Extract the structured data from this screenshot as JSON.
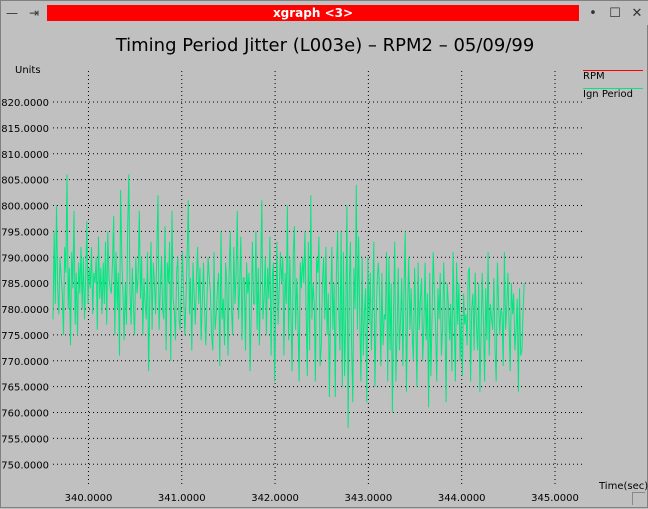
{
  "window": {
    "title": "xgraph <3>",
    "minimize_glyph": "—",
    "pin_glyph": "⇥",
    "shade_glyph": "•",
    "maximize_glyph": "☐",
    "close_glyph": "✕"
  },
  "chart_data": {
    "type": "line",
    "title": "Timing Period Jitter (L003e) – RPM2 – 05/09/99",
    "ylabel": "Units",
    "xlabel": "Time(sec)",
    "xlim": [
      339.62,
      345.3
    ],
    "ylim": [
      746.0,
      826.0
    ],
    "xticks": [
      340.0,
      341.0,
      342.0,
      343.0,
      344.0,
      345.0
    ],
    "xtick_labels": [
      "340.0000",
      "341.0000",
      "342.0000",
      "343.0000",
      "344.0000",
      "345.0000"
    ],
    "yticks": [
      750,
      755,
      760,
      765,
      770,
      775,
      780,
      785,
      790,
      795,
      800,
      805,
      810,
      815,
      820
    ],
    "ytick_labels": [
      "750.0000",
      "755.0000",
      "760.0000",
      "765.0000",
      "770.0000",
      "775.0000",
      "780.0000",
      "785.0000",
      "790.0000",
      "795.0000",
      "800.0000",
      "805.0000",
      "810.0000",
      "815.0000",
      "820.0000"
    ],
    "grid": true,
    "legend_position": "right",
    "series": [
      {
        "name": "RPM",
        "color": "#ff0000",
        "x": [],
        "y": []
      },
      {
        "name": "Ign Period",
        "color": "#00e880",
        "x_start": 339.62,
        "x_step": 0.0125,
        "y": [
          778,
          795,
          781,
          800,
          784,
          779,
          790,
          786,
          783,
          775,
          792,
          787,
          806,
          780,
          788,
          773,
          791,
          784,
          799,
          777,
          787,
          775,
          789,
          783,
          792,
          780,
          790,
          778,
          786,
          797,
          781,
          788,
          784,
          792,
          779,
          787,
          785,
          790,
          776,
          794,
          782,
          788,
          779,
          789,
          781,
          793,
          777,
          795,
          786,
          784,
          783,
          789,
          798,
          775,
          791,
          780,
          787,
          771,
          803,
          790,
          783,
          774,
          785,
          777,
          795,
          806,
          783,
          777,
          788,
          780,
          775,
          790,
          783,
          786,
          799,
          782,
          790,
          775,
          786,
          781,
          778,
          791,
          768,
          782,
          793,
          776,
          789,
          785,
          779,
          791,
          802,
          776,
          784,
          790,
          780,
          778,
          796,
          772,
          789,
          785,
          793,
          770,
          799,
          782,
          780,
          774,
          787,
          790,
          778,
          776,
          784,
          791,
          783,
          775,
          782,
          790,
          801,
          779,
          786,
          772,
          789,
          783,
          777,
          786,
          792,
          781,
          788,
          774,
          781,
          789,
          780,
          773,
          782,
          790,
          786,
          783,
          775,
          772,
          791,
          776,
          779,
          784,
          787,
          769,
          795,
          778,
          782,
          773,
          789,
          785,
          771,
          787,
          795,
          780,
          775,
          792,
          781,
          787,
          799,
          778,
          784,
          794,
          774,
          786,
          786,
          772,
          789,
          783,
          787,
          768,
          780,
          793,
          781,
          781,
          795,
          776,
          788,
          773,
          786,
          801,
          778,
          782,
          790,
          775,
          788,
          782,
          794,
          771,
          786,
          789,
          766,
          780,
          793,
          777,
          784,
          791,
          785,
          790,
          771,
          787,
          781,
          800,
          774,
          790,
          779,
          768,
          791,
          796,
          776,
          786,
          779,
          766,
          789,
          784,
          790,
          785,
          795,
          780,
          767,
          793,
          772,
          802,
          778,
          785,
          781,
          766,
          790,
          787,
          794,
          769,
          773,
          785,
          790,
          778,
          792,
          775,
          783,
          763,
          780,
          792,
          776,
          785,
          763,
          787,
          795,
          780,
          772,
          795,
          765,
          791,
          767,
          779,
          800,
          757,
          785,
          793,
          773,
          762,
          788,
          780,
          804,
          776,
          794,
          778,
          766,
          790,
          771,
          779,
          784,
          762,
          790,
          777,
          787,
          772,
          781,
          793,
          765,
          778,
          786,
          789,
          783,
          769,
          787,
          773,
          779,
          778,
          791,
          766,
          790,
          772,
          785,
          760,
          780,
          793,
          766,
          776,
          788,
          772,
          778,
          786,
          769,
          785,
          795,
          764,
          780,
          790,
          776,
          784,
          775,
          770,
          788,
          779,
          765,
          789,
          776,
          782,
          786,
          770,
          777,
          789,
          774,
          783,
          761,
          787,
          767,
          779,
          791,
          783,
          776,
          766,
          784,
          778,
          787,
          771,
          776,
          789,
          779,
          762,
          785,
          781,
          774,
          781,
          768,
          791,
          779,
          766,
          789,
          777,
          785,
          770,
          779,
          767,
          783,
          777,
          779,
          773,
          787,
          788,
          766,
          780,
          783,
          772,
          787,
          777,
          772,
          785,
          764,
          776,
          787,
          778,
          766,
          784,
          774,
          791,
          771,
          781,
          778,
          776,
          786,
          772,
          766,
          789,
          781,
          775,
          780,
          779,
          769,
          791,
          776,
          780,
          787,
          777,
          768,
          785,
          779,
          783,
          772,
          776,
          782,
          764,
          784,
          771,
          772,
          779,
          785
        ]
      }
    ]
  }
}
